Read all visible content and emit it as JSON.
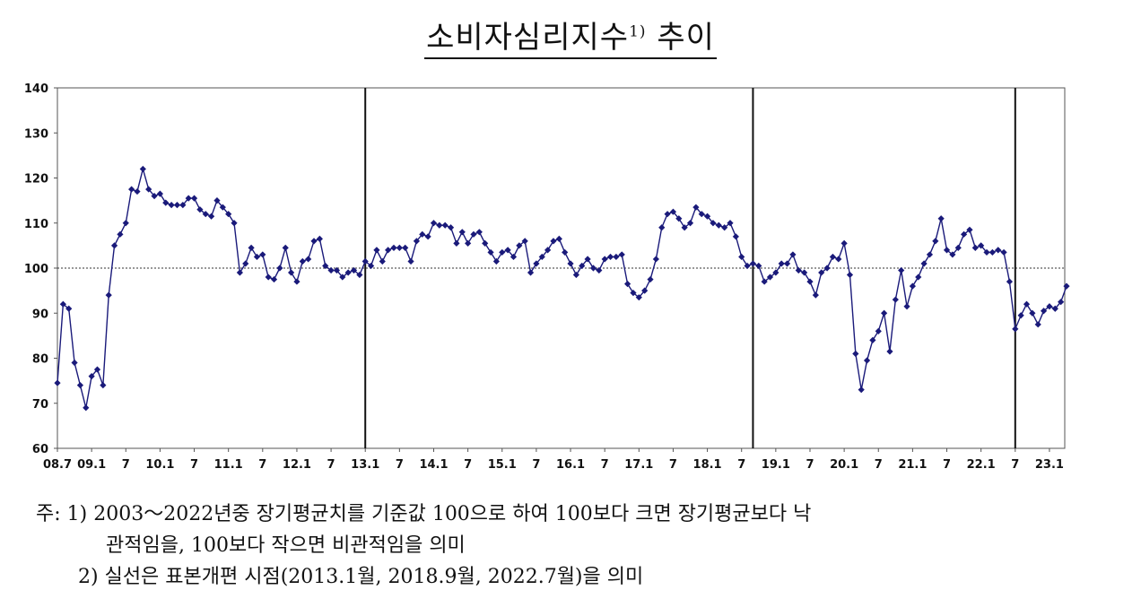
{
  "chart_data": {
    "type": "line",
    "title": "소비자심리지수",
    "title_sup": "1)",
    "title_suffix": " 추이",
    "ylim": [
      60,
      140
    ],
    "yticks": [
      60,
      70,
      80,
      90,
      100,
      110,
      120,
      130,
      140
    ],
    "reference_line": 100,
    "grid": false,
    "x_tick_labels": [
      {
        "i": 0,
        "label": "08.7"
      },
      {
        "i": 6,
        "label": "09.1"
      },
      {
        "i": 12,
        "label": "7"
      },
      {
        "i": 18,
        "label": "10.1"
      },
      {
        "i": 24,
        "label": "7"
      },
      {
        "i": 30,
        "label": "11.1"
      },
      {
        "i": 36,
        "label": "7"
      },
      {
        "i": 42,
        "label": "12.1"
      },
      {
        "i": 48,
        "label": "7"
      },
      {
        "i": 54,
        "label": "13.1"
      },
      {
        "i": 60,
        "label": "7"
      },
      {
        "i": 66,
        "label": "14.1"
      },
      {
        "i": 72,
        "label": "7"
      },
      {
        "i": 78,
        "label": "15.1"
      },
      {
        "i": 84,
        "label": "7"
      },
      {
        "i": 90,
        "label": "16.1"
      },
      {
        "i": 96,
        "label": "7"
      },
      {
        "i": 102,
        "label": "17.1"
      },
      {
        "i": 108,
        "label": "7"
      },
      {
        "i": 114,
        "label": "18.1"
      },
      {
        "i": 120,
        "label": "7"
      },
      {
        "i": 126,
        "label": "19.1"
      },
      {
        "i": 132,
        "label": "7"
      },
      {
        "i": 138,
        "label": "20.1"
      },
      {
        "i": 144,
        "label": "7"
      },
      {
        "i": 150,
        "label": "21.1"
      },
      {
        "i": 156,
        "label": "7"
      },
      {
        "i": 162,
        "label": "22.1"
      },
      {
        "i": 168,
        "label": "7"
      },
      {
        "i": 174,
        "label": "23.1"
      }
    ],
    "vertical_lines_at_index": [
      54,
      122,
      168
    ],
    "series": [
      {
        "color": "#1a1a7a",
        "values": [
          74.5,
          92.0,
          91.0,
          79.0,
          74.0,
          69.0,
          76.0,
          77.5,
          74.0,
          94.0,
          105.0,
          107.5,
          110.0,
          117.5,
          117.0,
          122.0,
          117.5,
          116.0,
          116.5,
          114.5,
          114.0,
          114.0,
          114.0,
          115.5,
          115.5,
          113.0,
          112.0,
          111.5,
          115.0,
          113.5,
          112.0,
          110.0,
          99.0,
          101.0,
          104.5,
          102.5,
          103.0,
          98.0,
          97.5,
          100.0,
          104.5,
          99.0,
          97.0,
          101.5,
          102.0,
          106.0,
          106.5,
          100.5,
          99.5,
          99.5,
          98.0,
          99.0,
          99.5,
          98.5,
          101.5,
          100.5,
          104.0,
          101.5,
          104.0,
          104.5,
          104.5,
          104.5,
          101.5,
          106.0,
          107.5,
          107.0,
          110.0,
          109.5,
          109.5,
          109.0,
          105.5,
          108.0,
          105.5,
          107.5,
          108.0,
          105.5,
          103.5,
          101.5,
          103.5,
          104.0,
          102.5,
          105.0,
          106.0,
          99.0,
          101.0,
          102.5,
          104.0,
          106.0,
          106.5,
          103.5,
          101.0,
          98.5,
          100.5,
          102.0,
          100.0,
          99.5,
          102.0,
          102.5,
          102.5,
          103.0,
          96.5,
          94.5,
          93.5,
          95.0,
          97.5,
          102.0,
          109.0,
          112.0,
          112.5,
          111.0,
          109.0,
          110.0,
          113.5,
          112.0,
          111.5,
          110.0,
          109.5,
          109.0,
          110.0,
          107.0,
          102.5,
          100.5,
          101.0,
          100.5,
          97.0,
          98.0,
          99.0,
          101.0,
          101.0,
          103.0,
          99.5,
          99.0,
          97.0,
          94.0,
          99.0,
          100.0,
          102.5,
          102.0,
          105.5,
          98.5,
          81.0,
          73.0,
          79.5,
          84.0,
          86.0,
          90.0,
          81.5,
          93.0,
          99.5,
          91.5,
          96.0,
          98.0,
          101.0,
          103.0,
          106.0,
          111.0,
          104.0,
          103.0,
          104.5,
          107.5,
          108.5,
          104.5,
          105.0,
          103.5,
          103.5,
          104.0,
          103.5,
          97.0,
          86.5,
          89.5,
          92.0,
          90.0,
          87.5,
          90.5,
          91.5,
          91.0,
          92.5,
          96.0
        ]
      }
    ]
  },
  "notes": {
    "line1a": "주: 1) 2003～2022년중 장기평균치를 기준값 100으로 하여 100보다 크면 장기평균보다 낙",
    "line1b": "관적임을, 100보다 작으면 비관적임을 의미",
    "line2": "2) 실선은 표본개편 시점(2013.1월, 2018.9월, 2022.7월)을 의미"
  }
}
